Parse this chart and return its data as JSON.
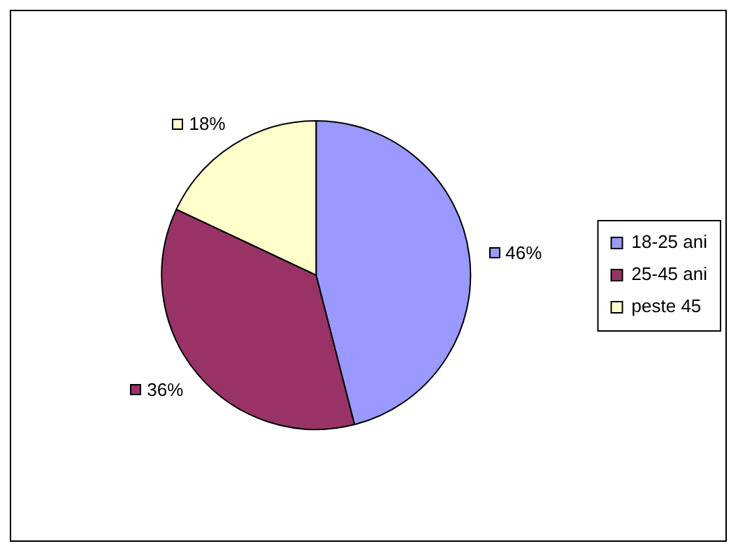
{
  "chart_data": {
    "type": "pie",
    "categories": [
      "18-25 ani",
      "25-45 ani",
      "peste 45"
    ],
    "values": [
      46,
      36,
      18
    ],
    "colors": [
      "#9999ff",
      "#993366",
      "#ffffcc"
    ],
    "value_labels": [
      "46%",
      "36%",
      "18%"
    ],
    "legend": "right"
  }
}
